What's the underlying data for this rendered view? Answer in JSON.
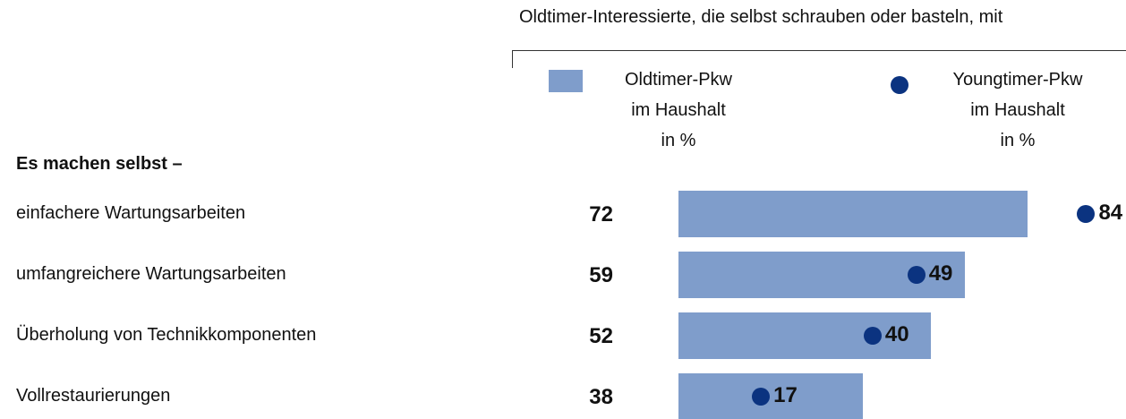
{
  "chart_data": {
    "type": "bar_dot",
    "subtitle": "Oldtimer-Interessierte, die selbst schrauben oder basteln, mit",
    "group_label": "Es machen selbst –",
    "categories": [
      "einfachere Wartungsarbeiten",
      "umfangreichere Wartungsarbeiten",
      "Überholung von Technikkomponenten",
      "Vollrestaurierungen"
    ],
    "series": [
      {
        "name": "Oldtimer-Pkw\nim Haushalt\nin %",
        "color": "#7f9dcb",
        "values": [
          72,
          59,
          52,
          38
        ]
      },
      {
        "name": "Youngtimer-Pkw\nim Haushalt\nin %",
        "color": "#0b3380",
        "values": [
          84,
          49,
          40,
          17
        ]
      }
    ],
    "xlim": [
      0,
      90
    ]
  }
}
